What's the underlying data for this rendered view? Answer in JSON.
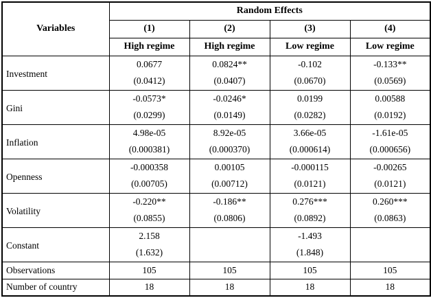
{
  "table": {
    "variables_header": "Variables",
    "group_header": "Random Effects",
    "columns": [
      "(1)",
      "(2)",
      "(3)",
      "(4)"
    ],
    "regimes": [
      "High regime",
      "High regime",
      "Low regime",
      "Low regime"
    ],
    "rows": [
      {
        "label": "Investment",
        "coef": [
          "0.0677",
          "0.0824**",
          "-0.102",
          "-0.133**"
        ],
        "se": [
          "(0.0412)",
          "(0.0407)",
          "(0.0670)",
          "(0.0569)"
        ]
      },
      {
        "label": "Gini",
        "coef": [
          "-0.0573*",
          "-0.0246*",
          "0.0199",
          "0.00588"
        ],
        "se": [
          "(0.0299)",
          "(0.0149)",
          "(0.0282)",
          "(0.0192)"
        ]
      },
      {
        "label": "Inflation",
        "coef": [
          "4.98e-05",
          "8.92e-05",
          "3.66e-05",
          "-1.61e-05"
        ],
        "se": [
          "(0.000381)",
          "(0.000370)",
          "(0.000614)",
          "(0.000656)"
        ]
      },
      {
        "label": "Openness",
        "coef": [
          "-0.000358",
          "0.00105",
          "-0.000115",
          "-0.00265"
        ],
        "se": [
          "(0.00705)",
          "(0.00712)",
          "(0.0121)",
          "(0.0121)"
        ]
      },
      {
        "label": "Volatility",
        "coef": [
          "-0.220**",
          "-0.186**",
          "0.276***",
          "0.260***"
        ],
        "se": [
          "(0.0855)",
          "(0.0806)",
          "(0.0892)",
          "(0.0863)"
        ]
      },
      {
        "label": "Constant",
        "coef": [
          "2.158",
          "",
          "-1.493",
          ""
        ],
        "se": [
          "(1.632)",
          "",
          "(1.848)",
          ""
        ]
      }
    ],
    "summary_rows": [
      {
        "label": "Observations",
        "values": [
          "105",
          "105",
          "105",
          "105"
        ]
      },
      {
        "label": "Number of country",
        "values": [
          "18",
          "18",
          "18",
          "18"
        ]
      }
    ]
  }
}
